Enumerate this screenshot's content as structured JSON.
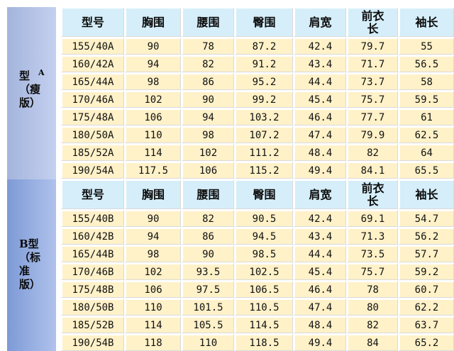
{
  "colors": {
    "header_bg": "#d5eef9",
    "cell_bg": "#fff1c8",
    "group_a_bg": "#b4c3e8",
    "group_b_bg": "#8ea8de"
  },
  "headers": [
    "型号",
    "胸围",
    "腰围",
    "臀围",
    "肩宽",
    "前衣\n长",
    "袖长"
  ],
  "groups": [
    {
      "sup": "A",
      "label": "型\n（瘦\n版）",
      "rows": [
        [
          "155/40A",
          "90",
          "78",
          "87.2",
          "42.4",
          "79.7",
          "55"
        ],
        [
          "160/42A",
          "94",
          "82",
          "91.2",
          "43.4",
          "71.7",
          "56.5"
        ],
        [
          "165/44A",
          "98",
          "86",
          "95.2",
          "44.4",
          "73.7",
          "58"
        ],
        [
          "170/46A",
          "102",
          "90",
          "99.2",
          "45.4",
          "75.7",
          "59.5"
        ],
        [
          "175/48A",
          "106",
          "94",
          "103.2",
          "46.4",
          "77.7",
          "61"
        ],
        [
          "180/50A",
          "110",
          "98",
          "107.2",
          "47.4",
          "79.9",
          "62.5"
        ],
        [
          "185/52A",
          "114",
          "102",
          "111.2",
          "48.4",
          "82",
          "64"
        ],
        [
          "190/54A",
          "117.5",
          "106",
          "115.2",
          "49.4",
          "84.1",
          "65.5"
        ]
      ]
    },
    {
      "sup": "",
      "label": "B型\n（标\n准\n版）",
      "rows": [
        [
          "155/40B",
          "90",
          "82",
          "90.5",
          "42.4",
          "69.1",
          "54.7"
        ],
        [
          "160/42B",
          "94",
          "86",
          "94.5",
          "43.4",
          "71.3",
          "56.2"
        ],
        [
          "165/44B",
          "98",
          "90",
          "98.5",
          "44.4",
          "73.5",
          "57.7"
        ],
        [
          "170/46B",
          "102",
          "93.5",
          "102.5",
          "45.4",
          "75.7",
          "59.2"
        ],
        [
          "175/48B",
          "106",
          "97.5",
          "106.5",
          "46.4",
          "78",
          "60.7"
        ],
        [
          "180/50B",
          "110",
          "101.5",
          "110.5",
          "47.4",
          "80",
          "62.2"
        ],
        [
          "185/52B",
          "114",
          "105.5",
          "114.5",
          "48.4",
          "82",
          "63.7"
        ],
        [
          "190/54B",
          "118",
          "110",
          "118.5",
          "49.4",
          "84",
          "65.2"
        ]
      ]
    }
  ]
}
